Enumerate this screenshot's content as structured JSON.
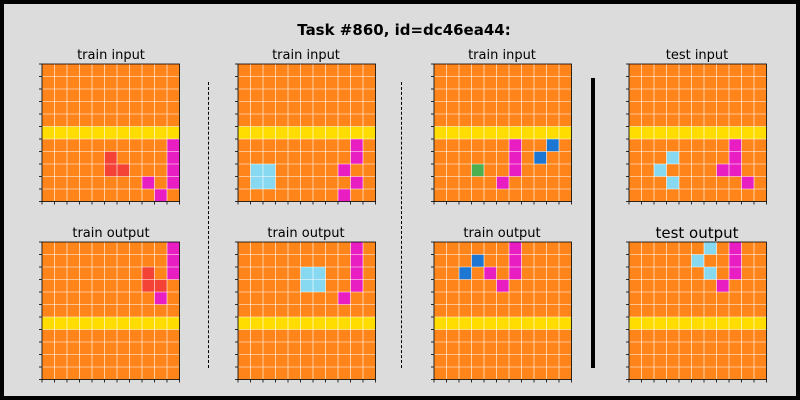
{
  "title": "Task #860, id=dc46ea44:",
  "colors": {
    "0": "#000000",
    "1": "#1e76d3",
    "2": "#f44336",
    "3": "#4caf50",
    "4": "#ffeb3b",
    "5": "#9e9e9e",
    "6": "#e91ec2",
    "7": "#ff851b",
    "8": "#87d8f1",
    "9": "#8b1a1a",
    "Y": "#ffdd00",
    "grid_line": "#ffffff",
    "background": "#dcdcdc"
  },
  "panels": [
    {
      "label": "train input",
      "grid": [
        "77777777777",
        "77777777777",
        "77777777777",
        "77777777777",
        "77777777777",
        "YYYYYYYYYYY",
        "77777777776",
        "77777277776",
        "77777227776",
        "77777777676",
        "77777777767"
      ]
    },
    {
      "label": "train output",
      "grid": [
        "77777777776",
        "77777777776",
        "77777777276",
        "77777777227",
        "77777777767",
        "77777777777",
        "YYYYYYYYYYY",
        "77777777777",
        "77777777777",
        "77777777777",
        "77777777777"
      ]
    },
    {
      "label": "train input",
      "grid": [
        "77777777777",
        "77777777777",
        "77777777777",
        "77777777777",
        "77777777777",
        "YYYYYYYYYYY",
        "77777777767",
        "77777777767",
        "78877777677",
        "78877777767",
        "77777777677"
      ]
    },
    {
      "label": "train output",
      "grid": [
        "77777777767",
        "77777777767",
        "77777887767",
        "77777887767",
        "77777777677",
        "77777777777",
        "YYYYYYYYYYY",
        "77777777777",
        "77777777777",
        "77777777777",
        "77777777777"
      ]
    },
    {
      "label": "train input",
      "grid": [
        "77777777777",
        "77777777777",
        "77777777777",
        "77777777777",
        "77777777777",
        "YYYYYYYYYYY",
        "77777767717",
        "77777767177",
        "77737767777",
        "77777677777",
        "77777777777"
      ]
    },
    {
      "label": "train output",
      "grid": [
        "77777767777",
        "77717767777",
        "77176767777",
        "77777677777",
        "77777777777",
        "77777777777",
        "YYYYYYYYYYY",
        "77777777777",
        "77777777777",
        "77777777777",
        "77777777777"
      ]
    },
    {
      "label": "test input",
      "grid": [
        "77777777777",
        "77777777777",
        "77777777777",
        "77777777777",
        "77777777777",
        "YYYYYYYYYYY",
        "77777777677",
        "77787777677",
        "77877776677",
        "77787777767",
        "77777777777"
      ]
    },
    {
      "label": "test output",
      "grid": [
        "77777787677",
        "77777877677",
        "77777787677",
        "77777776777",
        "77777777777",
        "77777777777",
        "YYYYYYYYYYY",
        "77777777777",
        "77777777777",
        "77777777777",
        "77777777777"
      ]
    }
  ]
}
